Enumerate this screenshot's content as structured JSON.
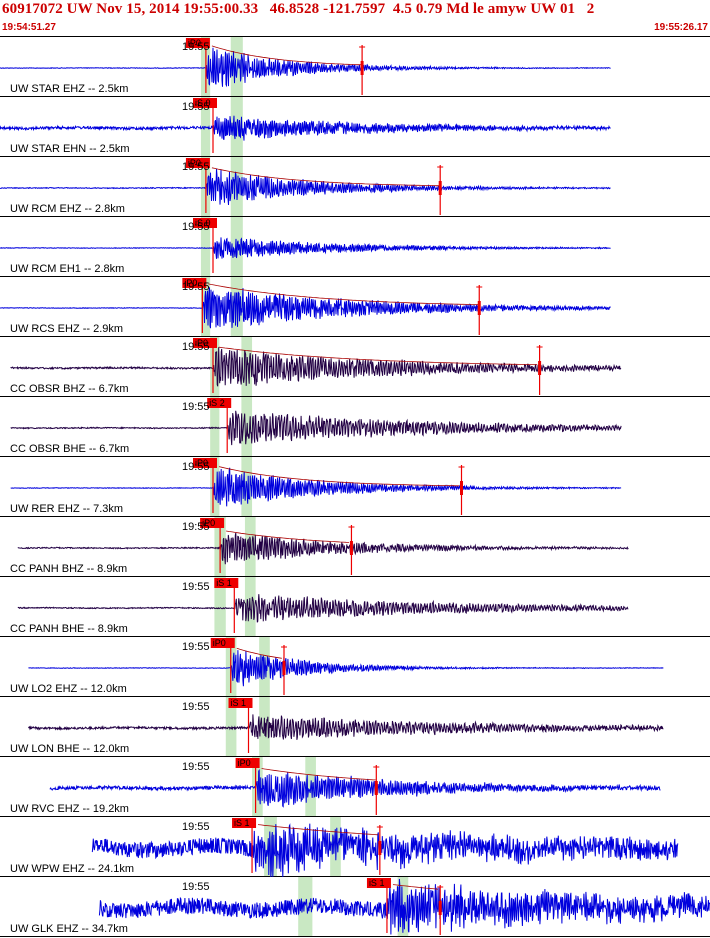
{
  "header": {
    "title": "60917072 UW Nov 15, 2014 19:55:00.33   46.8528 -121.7597  4.5 0.79 Md le amyw UW 01   2",
    "start_time": "19:54:51.27",
    "end_time": "19:55:26.17"
  },
  "chart_data": {
    "type": "line",
    "title": "60917072 UW Nov 15, 2014 19:55:00.33   46.8528 -121.7597  4.5 0.79 Md le amyw UW 01   2",
    "x_range": [
      "19:54:51.27",
      "19:55:26.17"
    ],
    "time_tick_label": "19:55",
    "colors": {
      "trace_vertical": "#0000dd",
      "trace_broadband": "#220044",
      "pick": "#ee0000",
      "window": "#bfe4b8",
      "divider": "#000000"
    },
    "traces": [
      {
        "label": "UW STAR EHZ -- 2.5km",
        "pick_label": "iP0",
        "amplitude": 0.95,
        "noise": 0.01,
        "decay": 9,
        "freq": 3.0,
        "color": "#0000dd",
        "pick_x": 0.29,
        "coda_x": 0.51,
        "start": 0.0,
        "end": 0.86
      },
      {
        "label": "UW STAR EHN -- 2.5km",
        "pick_label": "iS 0",
        "amplitude": 0.55,
        "noise": 0.05,
        "decay": 5,
        "freq": 3.4,
        "color": "#0000dd",
        "pick_x": 0.3,
        "coda_x": null,
        "start": 0.0,
        "end": 0.86
      },
      {
        "label": "UW RCM EHZ -- 2.8km",
        "pick_label": "iP0",
        "amplitude": 0.85,
        "noise": 0.015,
        "decay": 7,
        "freq": 3.0,
        "color": "#0000dd",
        "pick_x": 0.29,
        "coda_x": 0.62,
        "start": 0.0,
        "end": 0.86
      },
      {
        "label": "UW RCM EH1 -- 2.8km",
        "pick_label": "iS 0",
        "amplitude": 0.5,
        "noise": 0.01,
        "decay": 6,
        "freq": 3.4,
        "color": "#0000dd",
        "pick_x": 0.3,
        "coda_x": null,
        "start": 0.0,
        "end": 0.86
      },
      {
        "label": "UW RCS EHZ -- 2.9km",
        "pick_label": "iP0",
        "amplitude": 1.0,
        "noise": 0.01,
        "decay": 5,
        "freq": 3.2,
        "color": "#0000dd",
        "pick_x": 0.285,
        "coda_x": 0.675,
        "start": 0.0,
        "end": 0.86
      },
      {
        "label": "CC OBSR BHZ -- 6.7km",
        "pick_label": "iP0",
        "amplitude": 0.85,
        "noise": 0.03,
        "decay": 4,
        "freq": 2.4,
        "color": "#220044",
        "pick_x": 0.3,
        "coda_x": 0.76,
        "start": 0.015,
        "end": 0.875
      },
      {
        "label": "CC OBSR BHE -- 6.7km",
        "pick_label": "iS 2",
        "amplitude": 0.7,
        "noise": 0.02,
        "decay": 3.5,
        "freq": 2.2,
        "color": "#220044",
        "pick_x": 0.32,
        "coda_x": null,
        "start": 0.015,
        "end": 0.875
      },
      {
        "label": "UW RER EHZ -- 7.3km",
        "pick_label": "iP0",
        "amplitude": 0.9,
        "noise": 0.01,
        "decay": 7,
        "freq": 3.0,
        "color": "#0000dd",
        "pick_x": 0.3,
        "coda_x": 0.65,
        "start": 0.015,
        "end": 0.875
      },
      {
        "label": "CC PANH BHZ -- 8.9km",
        "pick_label": "iP0",
        "amplitude": 0.7,
        "noise": 0.02,
        "decay": 6,
        "freq": 2.6,
        "color": "#220044",
        "pick_x": 0.31,
        "coda_x": 0.495,
        "start": 0.025,
        "end": 0.885
      },
      {
        "label": "CC PANH BHE -- 8.9km",
        "pick_label": "iS 1",
        "amplitude": 0.6,
        "noise": 0.02,
        "decay": 3.5,
        "freq": 2.2,
        "color": "#220044",
        "pick_x": 0.33,
        "coda_x": null,
        "start": 0.025,
        "end": 0.885
      },
      {
        "label": "UW LO2 EHZ -- 12.0km",
        "pick_label": "iP0",
        "amplitude": 0.85,
        "noise": 0.01,
        "decay": 10,
        "freq": 3.0,
        "color": "#0000dd",
        "pick_x": 0.325,
        "coda_x": 0.4,
        "start": 0.04,
        "end": 0.935
      },
      {
        "label": "UW LON BHE -- 12.0km",
        "pick_label": "iS 1",
        "amplitude": 0.55,
        "noise": 0.04,
        "decay": 3.5,
        "freq": 2.2,
        "color": "#220044",
        "pick_x": 0.35,
        "coda_x": null,
        "start": 0.04,
        "end": 0.935
      },
      {
        "label": "UW RVC EHZ -- 19.2km",
        "pick_label": "iP0",
        "amplitude": 0.8,
        "noise": 0.06,
        "decay": 5,
        "freq": 3.0,
        "color": "#0000dd",
        "pick_x": 0.36,
        "coda_x": 0.53,
        "start": 0.07,
        "end": 0.93
      },
      {
        "label": "UW WPW EHZ -- 24.1km",
        "pick_label": "iS 1",
        "amplitude": 0.95,
        "noise": 0.3,
        "decay": 3,
        "freq": 3.2,
        "color": "#0000dd",
        "pick_x": 0.355,
        "coda_x": 0.535,
        "start": 0.13,
        "end": 0.955
      },
      {
        "label": "UW GLK EHZ -- 34.7km",
        "pick_label": "iS 1",
        "amplitude": 0.95,
        "noise": 0.3,
        "decay": 3,
        "freq": 3.2,
        "color": "#0000dd",
        "pick_x": 0.545,
        "coda_x": 0.62,
        "start": 0.14,
        "end": 1.0
      }
    ],
    "windows": [
      [
        0.283,
        0.296
      ],
      [
        0.283,
        0.296
      ],
      [
        0.283,
        0.296
      ],
      [
        0.283,
        0.296
      ],
      [
        0.283,
        0.296
      ],
      [
        0.296,
        0.309
      ],
      [
        0.296,
        0.309
      ],
      [
        0.296,
        0.309
      ],
      [
        0.302,
        0.318
      ],
      [
        0.302,
        0.318
      ],
      [
        0.318,
        0.333
      ],
      [
        0.318,
        0.333
      ],
      [
        0.355,
        0.37
      ],
      [
        0.372,
        0.39
      ],
      [
        0.42,
        0.44
      ]
    ],
    "secondary_windows": [
      [
        0.325,
        0.342
      ],
      [
        0.325,
        0.342
      ],
      [
        0.325,
        0.342
      ],
      [
        0.325,
        0.342
      ],
      [
        0.325,
        0.342
      ],
      [
        0.34,
        0.355
      ],
      [
        0.34,
        0.355
      ],
      [
        0.34,
        0.355
      ],
      [
        0.345,
        0.36
      ],
      [
        0.345,
        0.36
      ],
      [
        0.365,
        0.38
      ],
      [
        0.365,
        0.38
      ],
      [
        0.43,
        0.445
      ],
      [
        0.465,
        0.48
      ],
      [
        0.56,
        0.575
      ]
    ]
  }
}
